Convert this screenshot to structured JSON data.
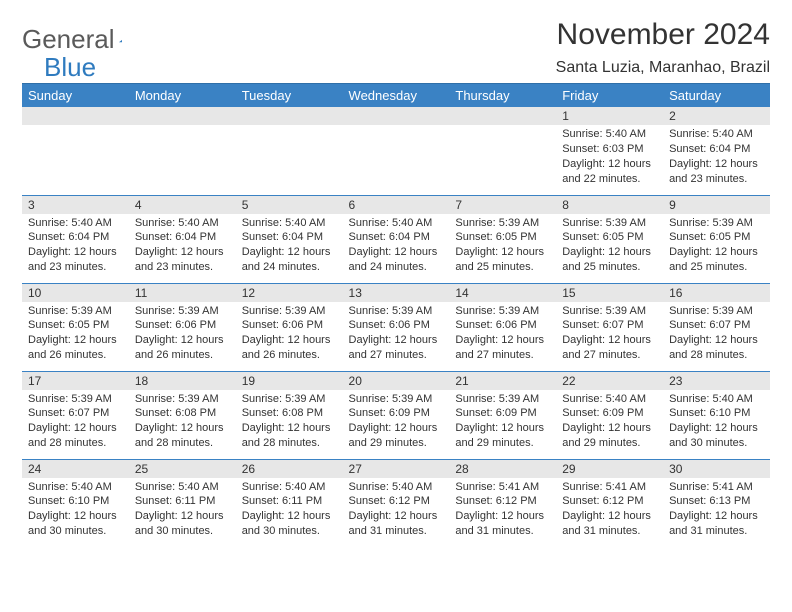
{
  "logo": {
    "text1": "General",
    "text2": "Blue"
  },
  "title": "November 2024",
  "location": "Santa Luzia, Maranhao, Brazil",
  "colors": {
    "header_bg": "#3a82c4",
    "header_text": "#ffffff",
    "row_border": "#3a82c4",
    "daynum_bg": "#e7e7e7",
    "body_text": "#333333",
    "logo_gray": "#5a5a5a",
    "logo_blue": "#2f7bbf"
  },
  "day_headers": [
    "Sunday",
    "Monday",
    "Tuesday",
    "Wednesday",
    "Thursday",
    "Friday",
    "Saturday"
  ],
  "weeks": [
    [
      {
        "n": "",
        "sr": "",
        "ss": "",
        "dl": ""
      },
      {
        "n": "",
        "sr": "",
        "ss": "",
        "dl": ""
      },
      {
        "n": "",
        "sr": "",
        "ss": "",
        "dl": ""
      },
      {
        "n": "",
        "sr": "",
        "ss": "",
        "dl": ""
      },
      {
        "n": "",
        "sr": "",
        "ss": "",
        "dl": ""
      },
      {
        "n": "1",
        "sr": "Sunrise: 5:40 AM",
        "ss": "Sunset: 6:03 PM",
        "dl": "Daylight: 12 hours and 22 minutes."
      },
      {
        "n": "2",
        "sr": "Sunrise: 5:40 AM",
        "ss": "Sunset: 6:04 PM",
        "dl": "Daylight: 12 hours and 23 minutes."
      }
    ],
    [
      {
        "n": "3",
        "sr": "Sunrise: 5:40 AM",
        "ss": "Sunset: 6:04 PM",
        "dl": "Daylight: 12 hours and 23 minutes."
      },
      {
        "n": "4",
        "sr": "Sunrise: 5:40 AM",
        "ss": "Sunset: 6:04 PM",
        "dl": "Daylight: 12 hours and 23 minutes."
      },
      {
        "n": "5",
        "sr": "Sunrise: 5:40 AM",
        "ss": "Sunset: 6:04 PM",
        "dl": "Daylight: 12 hours and 24 minutes."
      },
      {
        "n": "6",
        "sr": "Sunrise: 5:40 AM",
        "ss": "Sunset: 6:04 PM",
        "dl": "Daylight: 12 hours and 24 minutes."
      },
      {
        "n": "7",
        "sr": "Sunrise: 5:39 AM",
        "ss": "Sunset: 6:05 PM",
        "dl": "Daylight: 12 hours and 25 minutes."
      },
      {
        "n": "8",
        "sr": "Sunrise: 5:39 AM",
        "ss": "Sunset: 6:05 PM",
        "dl": "Daylight: 12 hours and 25 minutes."
      },
      {
        "n": "9",
        "sr": "Sunrise: 5:39 AM",
        "ss": "Sunset: 6:05 PM",
        "dl": "Daylight: 12 hours and 25 minutes."
      }
    ],
    [
      {
        "n": "10",
        "sr": "Sunrise: 5:39 AM",
        "ss": "Sunset: 6:05 PM",
        "dl": "Daylight: 12 hours and 26 minutes."
      },
      {
        "n": "11",
        "sr": "Sunrise: 5:39 AM",
        "ss": "Sunset: 6:06 PM",
        "dl": "Daylight: 12 hours and 26 minutes."
      },
      {
        "n": "12",
        "sr": "Sunrise: 5:39 AM",
        "ss": "Sunset: 6:06 PM",
        "dl": "Daylight: 12 hours and 26 minutes."
      },
      {
        "n": "13",
        "sr": "Sunrise: 5:39 AM",
        "ss": "Sunset: 6:06 PM",
        "dl": "Daylight: 12 hours and 27 minutes."
      },
      {
        "n": "14",
        "sr": "Sunrise: 5:39 AM",
        "ss": "Sunset: 6:06 PM",
        "dl": "Daylight: 12 hours and 27 minutes."
      },
      {
        "n": "15",
        "sr": "Sunrise: 5:39 AM",
        "ss": "Sunset: 6:07 PM",
        "dl": "Daylight: 12 hours and 27 minutes."
      },
      {
        "n": "16",
        "sr": "Sunrise: 5:39 AM",
        "ss": "Sunset: 6:07 PM",
        "dl": "Daylight: 12 hours and 28 minutes."
      }
    ],
    [
      {
        "n": "17",
        "sr": "Sunrise: 5:39 AM",
        "ss": "Sunset: 6:07 PM",
        "dl": "Daylight: 12 hours and 28 minutes."
      },
      {
        "n": "18",
        "sr": "Sunrise: 5:39 AM",
        "ss": "Sunset: 6:08 PM",
        "dl": "Daylight: 12 hours and 28 minutes."
      },
      {
        "n": "19",
        "sr": "Sunrise: 5:39 AM",
        "ss": "Sunset: 6:08 PM",
        "dl": "Daylight: 12 hours and 28 minutes."
      },
      {
        "n": "20",
        "sr": "Sunrise: 5:39 AM",
        "ss": "Sunset: 6:09 PM",
        "dl": "Daylight: 12 hours and 29 minutes."
      },
      {
        "n": "21",
        "sr": "Sunrise: 5:39 AM",
        "ss": "Sunset: 6:09 PM",
        "dl": "Daylight: 12 hours and 29 minutes."
      },
      {
        "n": "22",
        "sr": "Sunrise: 5:40 AM",
        "ss": "Sunset: 6:09 PM",
        "dl": "Daylight: 12 hours and 29 minutes."
      },
      {
        "n": "23",
        "sr": "Sunrise: 5:40 AM",
        "ss": "Sunset: 6:10 PM",
        "dl": "Daylight: 12 hours and 30 minutes."
      }
    ],
    [
      {
        "n": "24",
        "sr": "Sunrise: 5:40 AM",
        "ss": "Sunset: 6:10 PM",
        "dl": "Daylight: 12 hours and 30 minutes."
      },
      {
        "n": "25",
        "sr": "Sunrise: 5:40 AM",
        "ss": "Sunset: 6:11 PM",
        "dl": "Daylight: 12 hours and 30 minutes."
      },
      {
        "n": "26",
        "sr": "Sunrise: 5:40 AM",
        "ss": "Sunset: 6:11 PM",
        "dl": "Daylight: 12 hours and 30 minutes."
      },
      {
        "n": "27",
        "sr": "Sunrise: 5:40 AM",
        "ss": "Sunset: 6:12 PM",
        "dl": "Daylight: 12 hours and 31 minutes."
      },
      {
        "n": "28",
        "sr": "Sunrise: 5:41 AM",
        "ss": "Sunset: 6:12 PM",
        "dl": "Daylight: 12 hours and 31 minutes."
      },
      {
        "n": "29",
        "sr": "Sunrise: 5:41 AM",
        "ss": "Sunset: 6:12 PM",
        "dl": "Daylight: 12 hours and 31 minutes."
      },
      {
        "n": "30",
        "sr": "Sunrise: 5:41 AM",
        "ss": "Sunset: 6:13 PM",
        "dl": "Daylight: 12 hours and 31 minutes."
      }
    ]
  ]
}
